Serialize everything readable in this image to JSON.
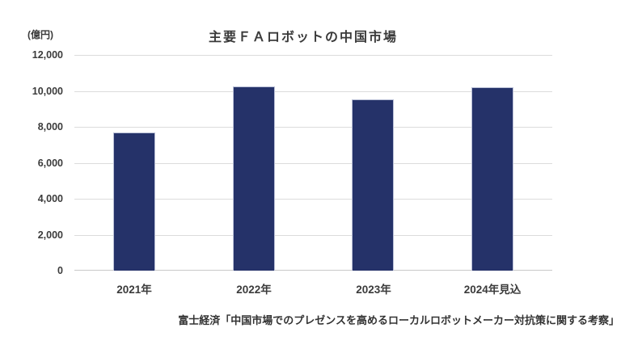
{
  "chart_data": {
    "type": "bar",
    "title": "主要ＦＡロボットの中国市場",
    "unit_label": "(億円)",
    "categories": [
      "2021年",
      "2022年",
      "2023年",
      "2024年見込"
    ],
    "values": [
      7700,
      10250,
      9550,
      10200
    ],
    "ylim": [
      0,
      12000
    ],
    "ytick_step": 2000,
    "ytick_labels": [
      "12,000",
      "10,000",
      "8,000",
      "6,000",
      "4,000",
      "2,000",
      "0"
    ],
    "grid": true,
    "legend_position": "none",
    "bar_color": "#253269",
    "gridline_color": "#dcdcdc",
    "axis_line_color": "#c9c9c9",
    "source_note": "富士経済「中国市場でのプレゼンスを高めるローカルロボットメーカー対抗策に関する考察」"
  }
}
